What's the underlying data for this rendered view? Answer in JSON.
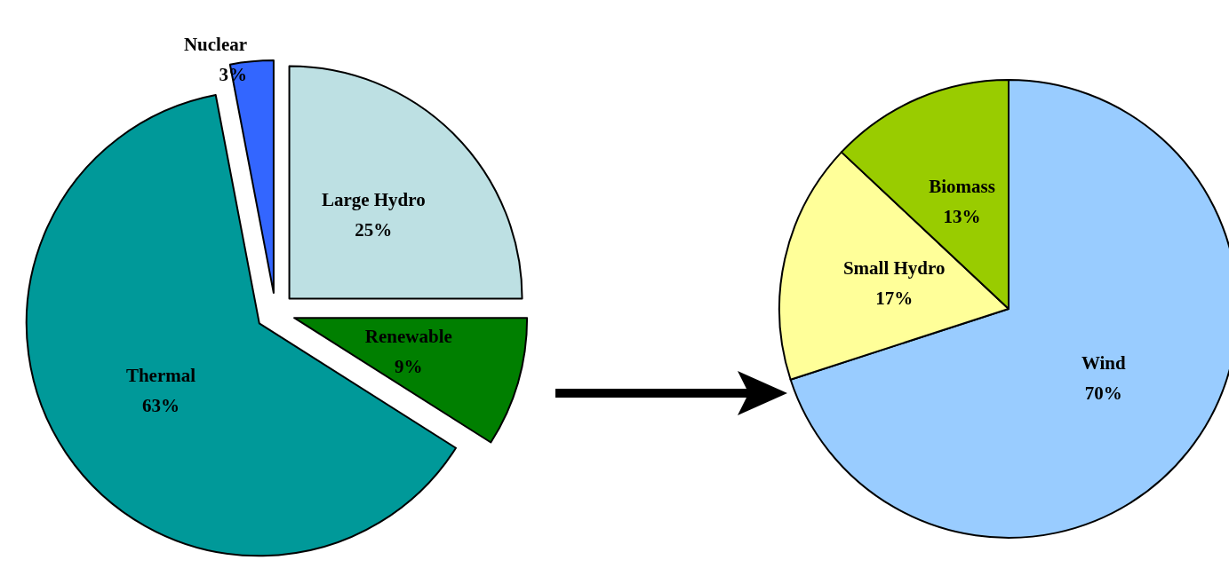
{
  "chart_data": [
    {
      "type": "pie",
      "categories": [
        "Large Hydro",
        "Renewable",
        "Thermal",
        "Nuclear"
      ],
      "values": [
        25,
        9,
        63,
        3
      ],
      "colors": [
        "#bde0e3",
        "#007f00",
        "#009999",
        "#3366ff"
      ],
      "value_labels": [
        "25%",
        "9%",
        "63%",
        "3%"
      ],
      "legend": false
    },
    {
      "type": "pie",
      "categories": [
        "Wind",
        "Small Hydro",
        "Biomass"
      ],
      "values": [
        70,
        17,
        13
      ],
      "colors": [
        "#99ccff",
        "#ffff99",
        "#99cc00"
      ],
      "value_labels": [
        "70%",
        "17%",
        "13%"
      ],
      "legend": false
    }
  ]
}
